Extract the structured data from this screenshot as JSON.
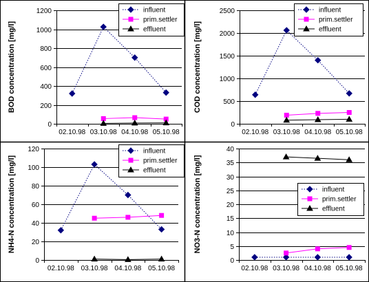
{
  "chart_data": [
    {
      "type": "line",
      "categories": [
        "02.10.98",
        "03.10.98",
        "04.10.98",
        "05.10.98"
      ],
      "ylabel": "BOD concentration [mg/l]",
      "ylim": [
        0,
        1200
      ],
      "yticks": [
        0,
        200,
        400,
        600,
        800,
        1000,
        1200
      ],
      "grid": true,
      "legend": "top-right",
      "series": [
        {
          "name": "influent",
          "values": [
            320,
            1025,
            700,
            330
          ],
          "color": "#000080",
          "marker": "diamond",
          "line": "dotted"
        },
        {
          "name": "prim.settler",
          "values": [
            null,
            55,
            65,
            50
          ],
          "color": "#ff00ff",
          "marker": "square",
          "line": "solid"
        },
        {
          "name": "effluent",
          "values": [
            null,
            5,
            8,
            10
          ],
          "color": "#000000",
          "marker": "triangle",
          "line": "solid"
        }
      ]
    },
    {
      "type": "line",
      "categories": [
        "02.10.98",
        "03.10.98",
        "04.10.98",
        "05.10.98"
      ],
      "ylabel": "COD concentration [mg/l]",
      "ylim": [
        0,
        2500
      ],
      "yticks": [
        0,
        500,
        1000,
        1500,
        2000,
        2500
      ],
      "grid": true,
      "legend": "top-right",
      "series": [
        {
          "name": "influent",
          "values": [
            640,
            2060,
            1400,
            670
          ],
          "color": "#000080",
          "marker": "diamond",
          "line": "dotted"
        },
        {
          "name": "prim.settler",
          "values": [
            null,
            190,
            230,
            250
          ],
          "color": "#ff00ff",
          "marker": "square",
          "line": "solid"
        },
        {
          "name": "effluent",
          "values": [
            null,
            80,
            90,
            100
          ],
          "color": "#000000",
          "marker": "triangle",
          "line": "solid"
        }
      ]
    },
    {
      "type": "line",
      "categories": [
        "02.10.98",
        "03.10.98",
        "04.10.98",
        "05.10.98"
      ],
      "ylabel": "NH4-N concentration [mg/l]",
      "ylim": [
        0,
        120
      ],
      "yticks": [
        0,
        20,
        40,
        60,
        80,
        100,
        120
      ],
      "grid": true,
      "legend": "top-right",
      "series": [
        {
          "name": "influent",
          "values": [
            32,
            103,
            70,
            33
          ],
          "color": "#000080",
          "marker": "diamond",
          "line": "dotted"
        },
        {
          "name": "prim.settler",
          "values": [
            null,
            45,
            46,
            48
          ],
          "color": "#ff00ff",
          "marker": "square",
          "line": "solid"
        },
        {
          "name": "effluent",
          "values": [
            null,
            1,
            0.5,
            1
          ],
          "color": "#000000",
          "marker": "triangle",
          "line": "solid"
        }
      ]
    },
    {
      "type": "line",
      "categories": [
        "02.10.98",
        "03.10.98",
        "04.10.98",
        "05.10.98"
      ],
      "ylabel": "NO3-N concentration [mg/l]",
      "ylim": [
        0,
        40
      ],
      "yticks": [
        0,
        5,
        10,
        15,
        20,
        25,
        30,
        35,
        40
      ],
      "grid": true,
      "legend": "center-right",
      "series": [
        {
          "name": "influent",
          "values": [
            1,
            1,
            1,
            1
          ],
          "color": "#000080",
          "marker": "diamond",
          "line": "dotted"
        },
        {
          "name": "prim.settler",
          "values": [
            null,
            2.5,
            4,
            4.5
          ],
          "color": "#ff00ff",
          "marker": "square",
          "line": "solid"
        },
        {
          "name": "effluent",
          "values": [
            null,
            37,
            36.5,
            36
          ],
          "color": "#000000",
          "marker": "triangle",
          "line": "solid"
        }
      ]
    }
  ]
}
